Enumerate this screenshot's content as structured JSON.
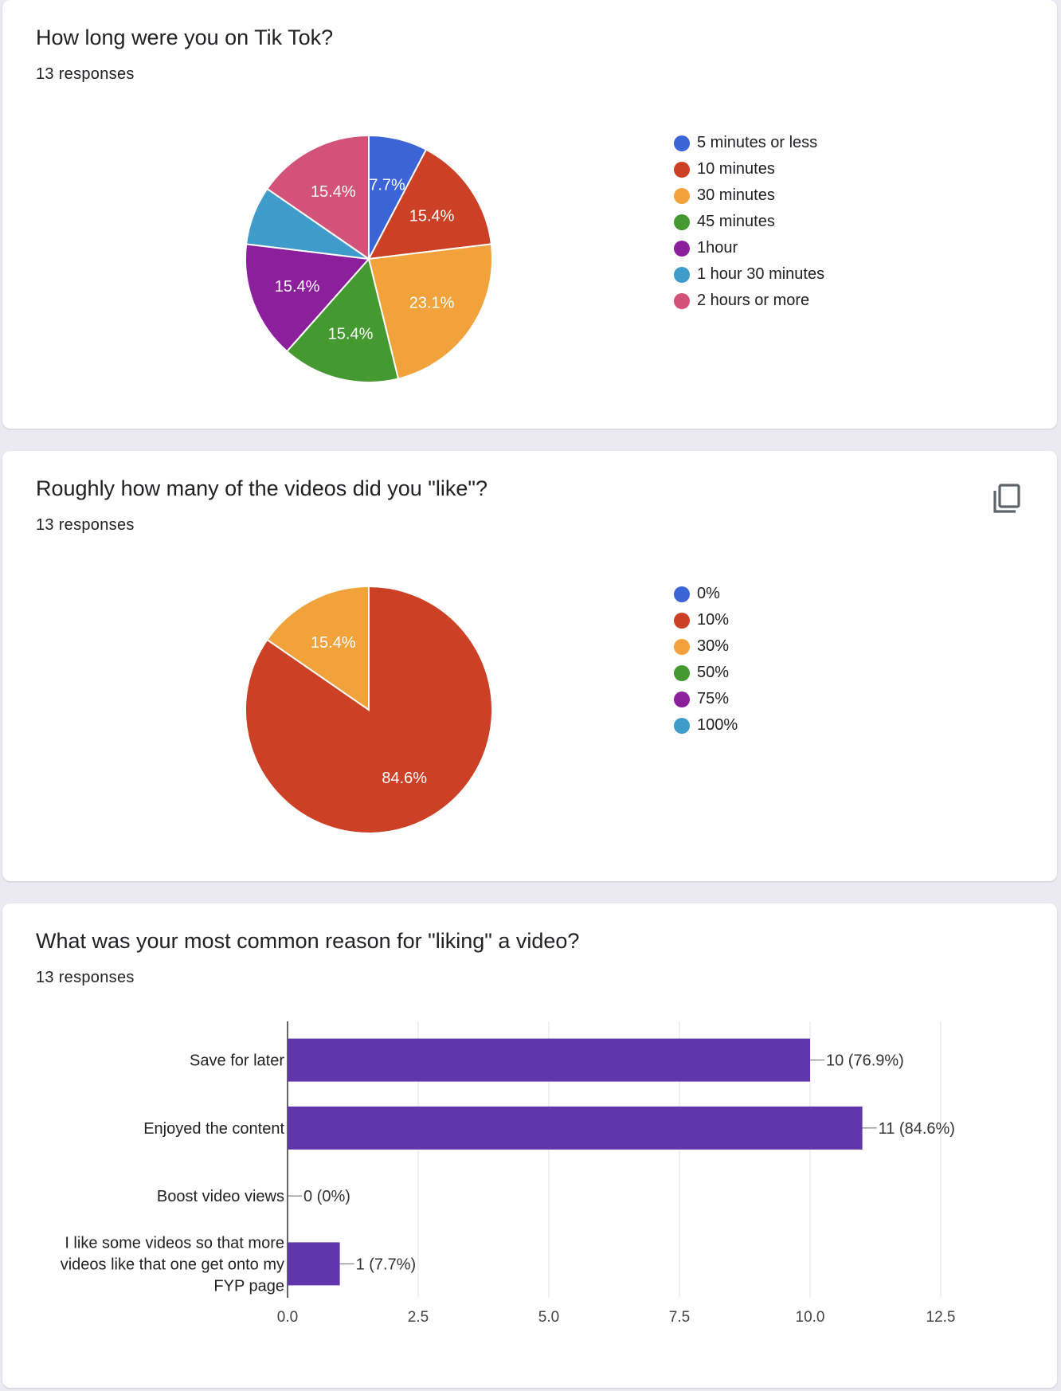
{
  "cards": [
    {
      "title": "How long were you on Tik Tok?",
      "responses": "13 responses",
      "chart_data": {
        "type": "pie",
        "total": 13,
        "start_angle": 90,
        "direction": "clockwise",
        "legend_position": "right",
        "slices": [
          {
            "name": "5 minutes or less",
            "value": 1,
            "label": "7.7%",
            "color": "#3b64d6"
          },
          {
            "name": "10 minutes",
            "value": 2,
            "label": "15.4%",
            "color": "#cc4125"
          },
          {
            "name": "30 minutes",
            "value": 3,
            "label": "23.1%",
            "color": "#f1a23a"
          },
          {
            "name": "45 minutes",
            "value": 2,
            "label": "15.4%",
            "color": "#449a30"
          },
          {
            "name": "1hour",
            "value": 2,
            "label": "15.4%",
            "color": "#8c1f9c"
          },
          {
            "name": "1 hour 30 minutes",
            "value": 1,
            "label": "",
            "color": "#3f9bc9"
          },
          {
            "name": "2 hours or more",
            "value": 2,
            "label": "15.4%",
            "color": "#d2527a"
          }
        ]
      }
    },
    {
      "title": "Roughly how many of the videos did you \"like\"?",
      "responses": "13 responses",
      "copy_icon": "copy-icon",
      "chart_data": {
        "type": "pie",
        "total": 13,
        "start_angle": 90,
        "direction": "clockwise",
        "legend_position": "right",
        "slices": [
          {
            "name": "0%",
            "value": 0,
            "label": "",
            "color": "#3b64d6"
          },
          {
            "name": "10%",
            "value": 11,
            "label": "84.6%",
            "color": "#cc4125"
          },
          {
            "name": "30%",
            "value": 2,
            "label": "15.4%",
            "color": "#f1a23a"
          },
          {
            "name": "50%",
            "value": 0,
            "label": "",
            "color": "#449a30"
          },
          {
            "name": "75%",
            "value": 0,
            "label": "",
            "color": "#8c1f9c"
          },
          {
            "name": "100%",
            "value": 0,
            "label": "",
            "color": "#3f9bc9"
          }
        ]
      }
    },
    {
      "title": "What was your most common reason for \"liking\" a video?",
      "responses": "13 responses",
      "chart_data": {
        "type": "bar",
        "orientation": "horizontal",
        "bar_color": "#6136ad",
        "xlim": [
          0,
          12.5
        ],
        "ticks": [
          "0.0",
          "2.5",
          "5.0",
          "7.5",
          "10.0",
          "12.5"
        ],
        "grid": true,
        "categories": [
          {
            "lines": [
              "Save for later"
            ],
            "value": 10,
            "label": "10 (76.9%)"
          },
          {
            "lines": [
              "Enjoyed the content"
            ],
            "value": 11,
            "label": "11 (84.6%)"
          },
          {
            "lines": [
              "Boost video views"
            ],
            "value": 0,
            "label": "0 (0%)"
          },
          {
            "lines": [
              "I like some videos so that more",
              "videos like that one get onto my",
              "FYP page"
            ],
            "value": 1,
            "label": "1 (7.7%)"
          }
        ]
      }
    }
  ]
}
